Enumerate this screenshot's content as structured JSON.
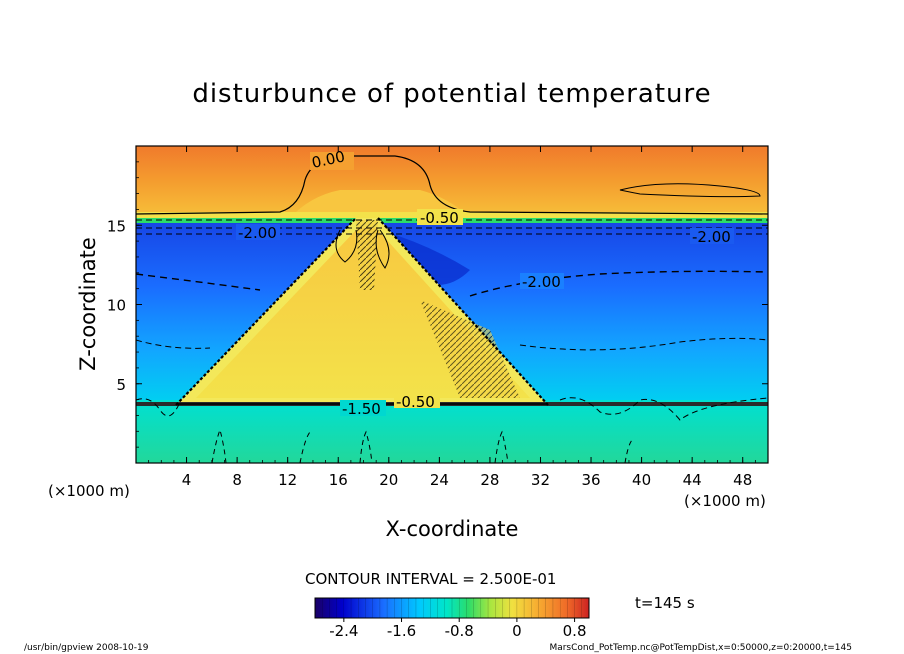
{
  "chart_data": {
    "type": "heatmap",
    "title": "disturbunce of potential temperature",
    "xlabel": "X-coordinate",
    "ylabel": "Z-coordinate",
    "x_unit_left": "(×1000 m)",
    "x_unit_right": "(×1000 m)",
    "xlim": [
      0,
      50
    ],
    "ylim": [
      0,
      20
    ],
    "xticks": [
      "4",
      "8",
      "12",
      "16",
      "20",
      "24",
      "28",
      "32",
      "36",
      "40",
      "44",
      "48"
    ],
    "yticks": [
      "5",
      "10",
      "15"
    ],
    "contour_interval_text": "CONTOUR INTERVAL = 2.500E-01",
    "time_text": "t=145 s",
    "colorbar": {
      "range": [
        -2.8,
        1.0
      ],
      "ticks": [
        "-2.4",
        "-1.6",
        "-0.8",
        "0",
        "0.8"
      ],
      "colors": [
        "#1a0066",
        "#0000cc",
        "#1a6dff",
        "#00c8ff",
        "#00e6c8",
        "#2cdc6a",
        "#a8e640",
        "#f0e040",
        "#f7a830",
        "#ef6a28",
        "#cc2222"
      ]
    },
    "contour_labels": [
      "0.00",
      "-0.50",
      "-2.00",
      "-2.00",
      "-2.00",
      "-1.50",
      "-0.50"
    ],
    "grid": false
  },
  "footer": {
    "left": "/usr/bin/gpview   2008-10-19",
    "right": "MarsCond_PotTemp.nc@PotTempDist,x=0:50000,z=0:20000,t=145"
  }
}
